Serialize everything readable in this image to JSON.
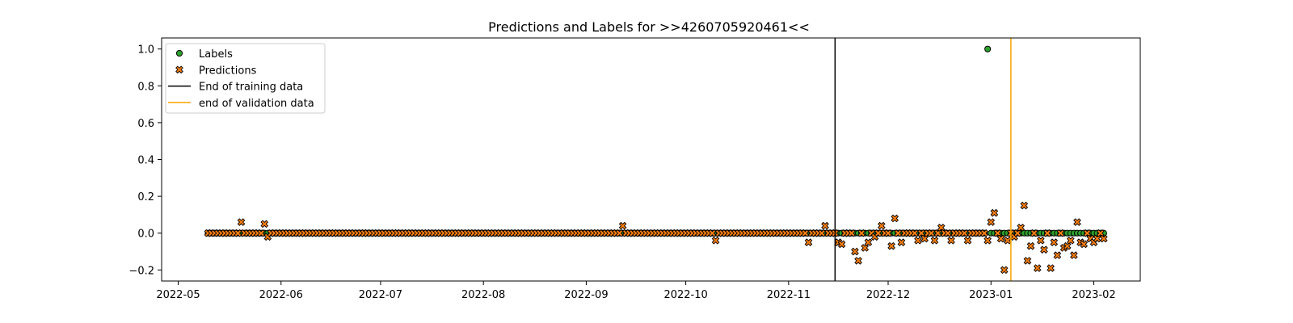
{
  "chart_data": {
    "type": "scatter",
    "title": "Predictions and Labels for >>4260705920461<<",
    "xlabel": "",
    "ylabel": "",
    "xlim": [
      "2022-04-26",
      "2023-02-15"
    ],
    "ylim": [
      -0.26,
      1.06
    ],
    "xticks": [
      "2022-05",
      "2022-06",
      "2022-07",
      "2022-08",
      "2022-09",
      "2022-10",
      "2022-11",
      "2022-12",
      "2023-01",
      "2023-02"
    ],
    "xtick_dates": [
      "2022-05-01",
      "2022-06-01",
      "2022-07-01",
      "2022-08-01",
      "2022-09-01",
      "2022-10-01",
      "2022-11-01",
      "2022-12-01",
      "2023-01-01",
      "2023-02-01"
    ],
    "yticks": [
      "−0.2",
      "0.0",
      "0.2",
      "0.4",
      "0.6",
      "0.8",
      "1.0"
    ],
    "ytick_values": [
      -0.2,
      0.0,
      0.2,
      0.4,
      0.6,
      0.8,
      1.0
    ],
    "grid": false,
    "legend_position": "top-left",
    "legend": [
      {
        "label": "Labels",
        "kind": "circle",
        "color": "#2ca02c"
      },
      {
        "label": "Predictions",
        "kind": "x",
        "color": "#ff7f0e"
      },
      {
        "label": "End of training data",
        "kind": "line",
        "color": "#000000"
      },
      {
        "label": "end of validation data",
        "kind": "line",
        "color": "#ffa500"
      }
    ],
    "vlines": [
      {
        "name": "End of training data",
        "x": "2022-11-15",
        "color": "#000000"
      },
      {
        "name": "end of validation data",
        "x": "2023-01-07",
        "color": "#ffa500"
      }
    ],
    "series": [
      {
        "name": "Labels",
        "marker": "circle",
        "color": "#2ca02c",
        "date_range": [
          "2022-05-10",
          "2023-02-04"
        ],
        "baseline_value": 0.0,
        "overrides": [
          {
            "x": "2022-12-31",
            "y": 1.0
          }
        ]
      },
      {
        "name": "Predictions",
        "marker": "x",
        "color": "#ff7f0e",
        "date_range": [
          "2022-05-10",
          "2023-02-04"
        ],
        "baseline_value": 0.0,
        "overrides": [
          {
            "x": "2022-05-20",
            "y": 0.06
          },
          {
            "x": "2022-05-27",
            "y": 0.05
          },
          {
            "x": "2022-05-28",
            "y": -0.02
          },
          {
            "x": "2022-09-12",
            "y": 0.04
          },
          {
            "x": "2022-10-10",
            "y": -0.04
          },
          {
            "x": "2022-11-07",
            "y": -0.05
          },
          {
            "x": "2022-11-12",
            "y": 0.04
          },
          {
            "x": "2022-11-16",
            "y": -0.05
          },
          {
            "x": "2022-11-17",
            "y": -0.06
          },
          {
            "x": "2022-11-21",
            "y": -0.1
          },
          {
            "x": "2022-11-22",
            "y": -0.15
          },
          {
            "x": "2022-11-24",
            "y": -0.08
          },
          {
            "x": "2022-11-25",
            "y": -0.05
          },
          {
            "x": "2022-11-27",
            "y": -0.02
          },
          {
            "x": "2022-11-29",
            "y": 0.04
          },
          {
            "x": "2022-12-02",
            "y": -0.07
          },
          {
            "x": "2022-12-03",
            "y": 0.08
          },
          {
            "x": "2022-12-05",
            "y": -0.05
          },
          {
            "x": "2022-12-10",
            "y": -0.04
          },
          {
            "x": "2022-12-12",
            "y": -0.03
          },
          {
            "x": "2022-12-15",
            "y": -0.04
          },
          {
            "x": "2022-12-17",
            "y": 0.03
          },
          {
            "x": "2022-12-20",
            "y": -0.04
          },
          {
            "x": "2022-12-25",
            "y": -0.04
          },
          {
            "x": "2022-12-29",
            "y": 0.0
          },
          {
            "x": "2022-12-31",
            "y": -0.04
          },
          {
            "x": "2023-01-01",
            "y": 0.06
          },
          {
            "x": "2023-01-02",
            "y": 0.11
          },
          {
            "x": "2023-01-04",
            "y": -0.03
          },
          {
            "x": "2023-01-05",
            "y": -0.2
          },
          {
            "x": "2023-01-06",
            "y": -0.04
          },
          {
            "x": "2023-01-08",
            "y": -0.02
          },
          {
            "x": "2023-01-10",
            "y": 0.03
          },
          {
            "x": "2023-01-11",
            "y": 0.15
          },
          {
            "x": "2023-01-12",
            "y": -0.15
          },
          {
            "x": "2023-01-13",
            "y": -0.07
          },
          {
            "x": "2023-01-15",
            "y": -0.19
          },
          {
            "x": "2023-01-16",
            "y": -0.04
          },
          {
            "x": "2023-01-17",
            "y": -0.09
          },
          {
            "x": "2023-01-19",
            "y": -0.19
          },
          {
            "x": "2023-01-20",
            "y": -0.05
          },
          {
            "x": "2023-01-21",
            "y": -0.12
          },
          {
            "x": "2023-01-23",
            "y": -0.08
          },
          {
            "x": "2023-01-24",
            "y": -0.07
          },
          {
            "x": "2023-01-25",
            "y": -0.04
          },
          {
            "x": "2023-01-26",
            "y": -0.12
          },
          {
            "x": "2023-01-27",
            "y": 0.06
          },
          {
            "x": "2023-01-28",
            "y": -0.05
          },
          {
            "x": "2023-01-29",
            "y": -0.06
          },
          {
            "x": "2023-01-31",
            "y": -0.03
          },
          {
            "x": "2023-02-01",
            "y": -0.05
          },
          {
            "x": "2023-02-02",
            "y": -0.03
          },
          {
            "x": "2023-02-04",
            "y": -0.03
          }
        ]
      }
    ]
  }
}
